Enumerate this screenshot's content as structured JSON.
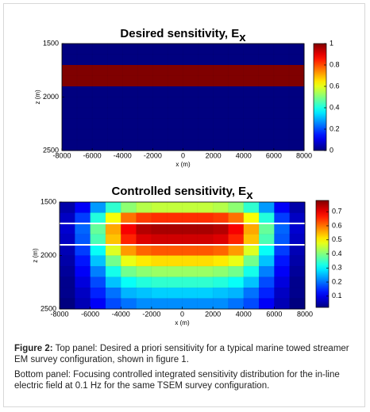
{
  "chart_data": [
    {
      "type": "heatmap",
      "title": "Desired sensitivity, E",
      "title_subscript": "x",
      "xlabel": "x (m)",
      "ylabel": "z (m)",
      "xlim": [
        -8000,
        8000
      ],
      "ylim": [
        1500,
        2500
      ],
      "y_inverted": true,
      "xticks": [
        -8000,
        -6000,
        -4000,
        -2000,
        0,
        2000,
        4000,
        6000,
        8000
      ],
      "yticks": [
        1500,
        2000,
        2500
      ],
      "xbins": [
        -8000,
        -7000,
        -6000,
        -5000,
        -4000,
        -3000,
        -2000,
        -1000,
        0,
        1000,
        2000,
        3000,
        4000,
        5000,
        6000,
        7000,
        8000
      ],
      "ybins": [
        1500,
        1600,
        1700,
        1800,
        1900,
        2000,
        2100,
        2200,
        2300,
        2400,
        2500
      ],
      "colormap": "jet",
      "clim": [
        0,
        1
      ],
      "cticks": [
        0,
        0.2,
        0.4,
        0.6,
        0.8,
        1
      ],
      "z": [
        [
          0,
          0,
          0,
          0,
          0,
          0,
          0,
          0,
          0,
          0,
          0,
          0,
          0,
          0,
          0,
          0
        ],
        [
          0,
          0,
          0,
          0,
          0,
          0,
          0,
          0,
          0,
          0,
          0,
          0,
          0,
          0,
          0,
          0
        ],
        [
          1,
          1,
          1,
          1,
          1,
          1,
          1,
          1,
          1,
          1,
          1,
          1,
          1,
          1,
          1,
          1
        ],
        [
          1,
          1,
          1,
          1,
          1,
          1,
          1,
          1,
          1,
          1,
          1,
          1,
          1,
          1,
          1,
          1
        ],
        [
          0,
          0,
          0,
          0,
          0,
          0,
          0,
          0,
          0,
          0,
          0,
          0,
          0,
          0,
          0,
          0
        ],
        [
          0,
          0,
          0,
          0,
          0,
          0,
          0,
          0,
          0,
          0,
          0,
          0,
          0,
          0,
          0,
          0
        ],
        [
          0,
          0,
          0,
          0,
          0,
          0,
          0,
          0,
          0,
          0,
          0,
          0,
          0,
          0,
          0,
          0
        ],
        [
          0,
          0,
          0,
          0,
          0,
          0,
          0,
          0,
          0,
          0,
          0,
          0,
          0,
          0,
          0,
          0
        ],
        [
          0,
          0,
          0,
          0,
          0,
          0,
          0,
          0,
          0,
          0,
          0,
          0,
          0,
          0,
          0,
          0
        ],
        [
          0,
          0,
          0,
          0,
          0,
          0,
          0,
          0,
          0,
          0,
          0,
          0,
          0,
          0,
          0,
          0
        ]
      ]
    },
    {
      "type": "heatmap",
      "title": "Controlled sensitivity,  E",
      "title_subscript": "x",
      "xlabel": "x (m)",
      "ylabel": "z (m)",
      "xlim": [
        -8000,
        8000
      ],
      "ylim": [
        1500,
        2500
      ],
      "y_inverted": true,
      "xticks": [
        -8000,
        -6000,
        -4000,
        -2000,
        0,
        2000,
        4000,
        6000,
        8000
      ],
      "yticks": [
        1500,
        2000,
        2500
      ],
      "xbins": [
        -8000,
        -7000,
        -6000,
        -5000,
        -4000,
        -3000,
        -2000,
        -1000,
        0,
        1000,
        2000,
        3000,
        4000,
        5000,
        6000,
        7000,
        8000
      ],
      "ybins": [
        1500,
        1600,
        1700,
        1800,
        1900,
        2000,
        2100,
        2200,
        2300,
        2400,
        2500
      ],
      "colormap": "jet",
      "clim": [
        0.02,
        0.78
      ],
      "cticks": [
        0.1,
        0.2,
        0.3,
        0.4,
        0.5,
        0.6,
        0.7
      ],
      "hlines": [
        1700,
        1900
      ],
      "hline_color": "#ffffff",
      "z": [
        [
          0.05,
          0.11,
          0.23,
          0.34,
          0.41,
          0.44,
          0.45,
          0.45,
          0.45,
          0.45,
          0.44,
          0.41,
          0.34,
          0.23,
          0.11,
          0.05
        ],
        [
          0.07,
          0.16,
          0.33,
          0.49,
          0.6,
          0.64,
          0.65,
          0.65,
          0.65,
          0.65,
          0.64,
          0.6,
          0.49,
          0.33,
          0.16,
          0.07
        ],
        [
          0.08,
          0.19,
          0.38,
          0.56,
          0.69,
          0.74,
          0.75,
          0.75,
          0.75,
          0.75,
          0.74,
          0.69,
          0.56,
          0.38,
          0.19,
          0.08
        ],
        [
          0.07,
          0.18,
          0.36,
          0.54,
          0.66,
          0.71,
          0.72,
          0.72,
          0.72,
          0.72,
          0.71,
          0.66,
          0.54,
          0.36,
          0.18,
          0.07
        ],
        [
          0.06,
          0.16,
          0.31,
          0.47,
          0.57,
          0.61,
          0.62,
          0.62,
          0.62,
          0.62,
          0.61,
          0.57,
          0.47,
          0.31,
          0.16,
          0.06
        ],
        [
          0.05,
          0.13,
          0.26,
          0.39,
          0.48,
          0.51,
          0.52,
          0.52,
          0.52,
          0.52,
          0.51,
          0.48,
          0.39,
          0.26,
          0.13,
          0.05
        ],
        [
          0.04,
          0.11,
          0.21,
          0.32,
          0.39,
          0.41,
          0.42,
          0.42,
          0.42,
          0.42,
          0.41,
          0.39,
          0.32,
          0.21,
          0.11,
          0.04
        ],
        [
          0.03,
          0.09,
          0.17,
          0.26,
          0.31,
          0.33,
          0.34,
          0.34,
          0.34,
          0.34,
          0.33,
          0.31,
          0.26,
          0.17,
          0.09,
          0.03
        ],
        [
          0.03,
          0.07,
          0.14,
          0.2,
          0.25,
          0.26,
          0.27,
          0.27,
          0.27,
          0.27,
          0.26,
          0.25,
          0.2,
          0.14,
          0.07,
          0.03
        ],
        [
          0.02,
          0.06,
          0.11,
          0.17,
          0.2,
          0.22,
          0.22,
          0.22,
          0.22,
          0.22,
          0.22,
          0.2,
          0.17,
          0.11,
          0.06,
          0.02
        ]
      ]
    }
  ],
  "caption": {
    "label": "Figure 2:",
    "top": "Top panel: Desired a priori sensitivity for a typical marine towed streamer EM survey configuration, shown in figure 1.",
    "bottom": "Bottom panel: Focusing controlled integrated sensitivity distribution for the in-line electric field at 0.1 Hz for the same TSEM survey configuration."
  }
}
